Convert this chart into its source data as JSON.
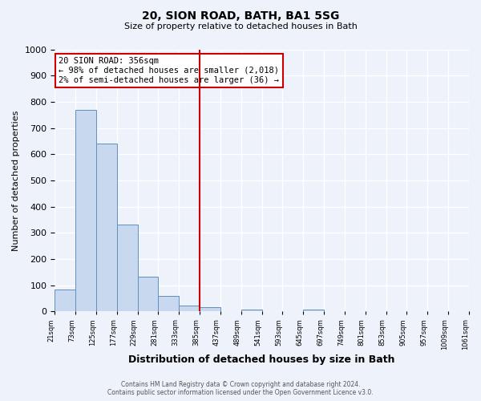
{
  "title": "20, SION ROAD, BATH, BA1 5SG",
  "subtitle": "Size of property relative to detached houses in Bath",
  "xlabel": "Distribution of detached houses by size in Bath",
  "ylabel": "Number of detached properties",
  "bar_values": [
    85,
    770,
    640,
    333,
    133,
    60,
    22,
    18,
    0,
    8,
    0,
    0,
    7,
    0,
    0,
    0,
    0,
    0,
    0,
    0
  ],
  "bin_labels": [
    "21sqm",
    "73sqm",
    "125sqm",
    "177sqm",
    "229sqm",
    "281sqm",
    "333sqm",
    "385sqm",
    "437sqm",
    "489sqm",
    "541sqm",
    "593sqm",
    "645sqm",
    "697sqm",
    "749sqm",
    "801sqm",
    "853sqm",
    "905sqm",
    "957sqm",
    "1009sqm",
    "1061sqm"
  ],
  "bar_color": "#c8d8ee",
  "bar_edge_color": "#6090c0",
  "vline_color": "#cc0000",
  "annotation_title": "20 SION ROAD: 356sqm",
  "annotation_line1": "← 98% of detached houses are smaller (2,018)",
  "annotation_line2": "2% of semi-detached houses are larger (36) →",
  "annotation_box_color": "#ffffff",
  "annotation_box_edge": "#cc0000",
  "ylim": [
    0,
    1000
  ],
  "yticks": [
    0,
    100,
    200,
    300,
    400,
    500,
    600,
    700,
    800,
    900,
    1000
  ],
  "footer_line1": "Contains HM Land Registry data © Crown copyright and database right 2024.",
  "footer_line2": "Contains public sector information licensed under the Open Government Licence v3.0.",
  "background_color": "#eef2fa",
  "grid_color": "#ffffff"
}
